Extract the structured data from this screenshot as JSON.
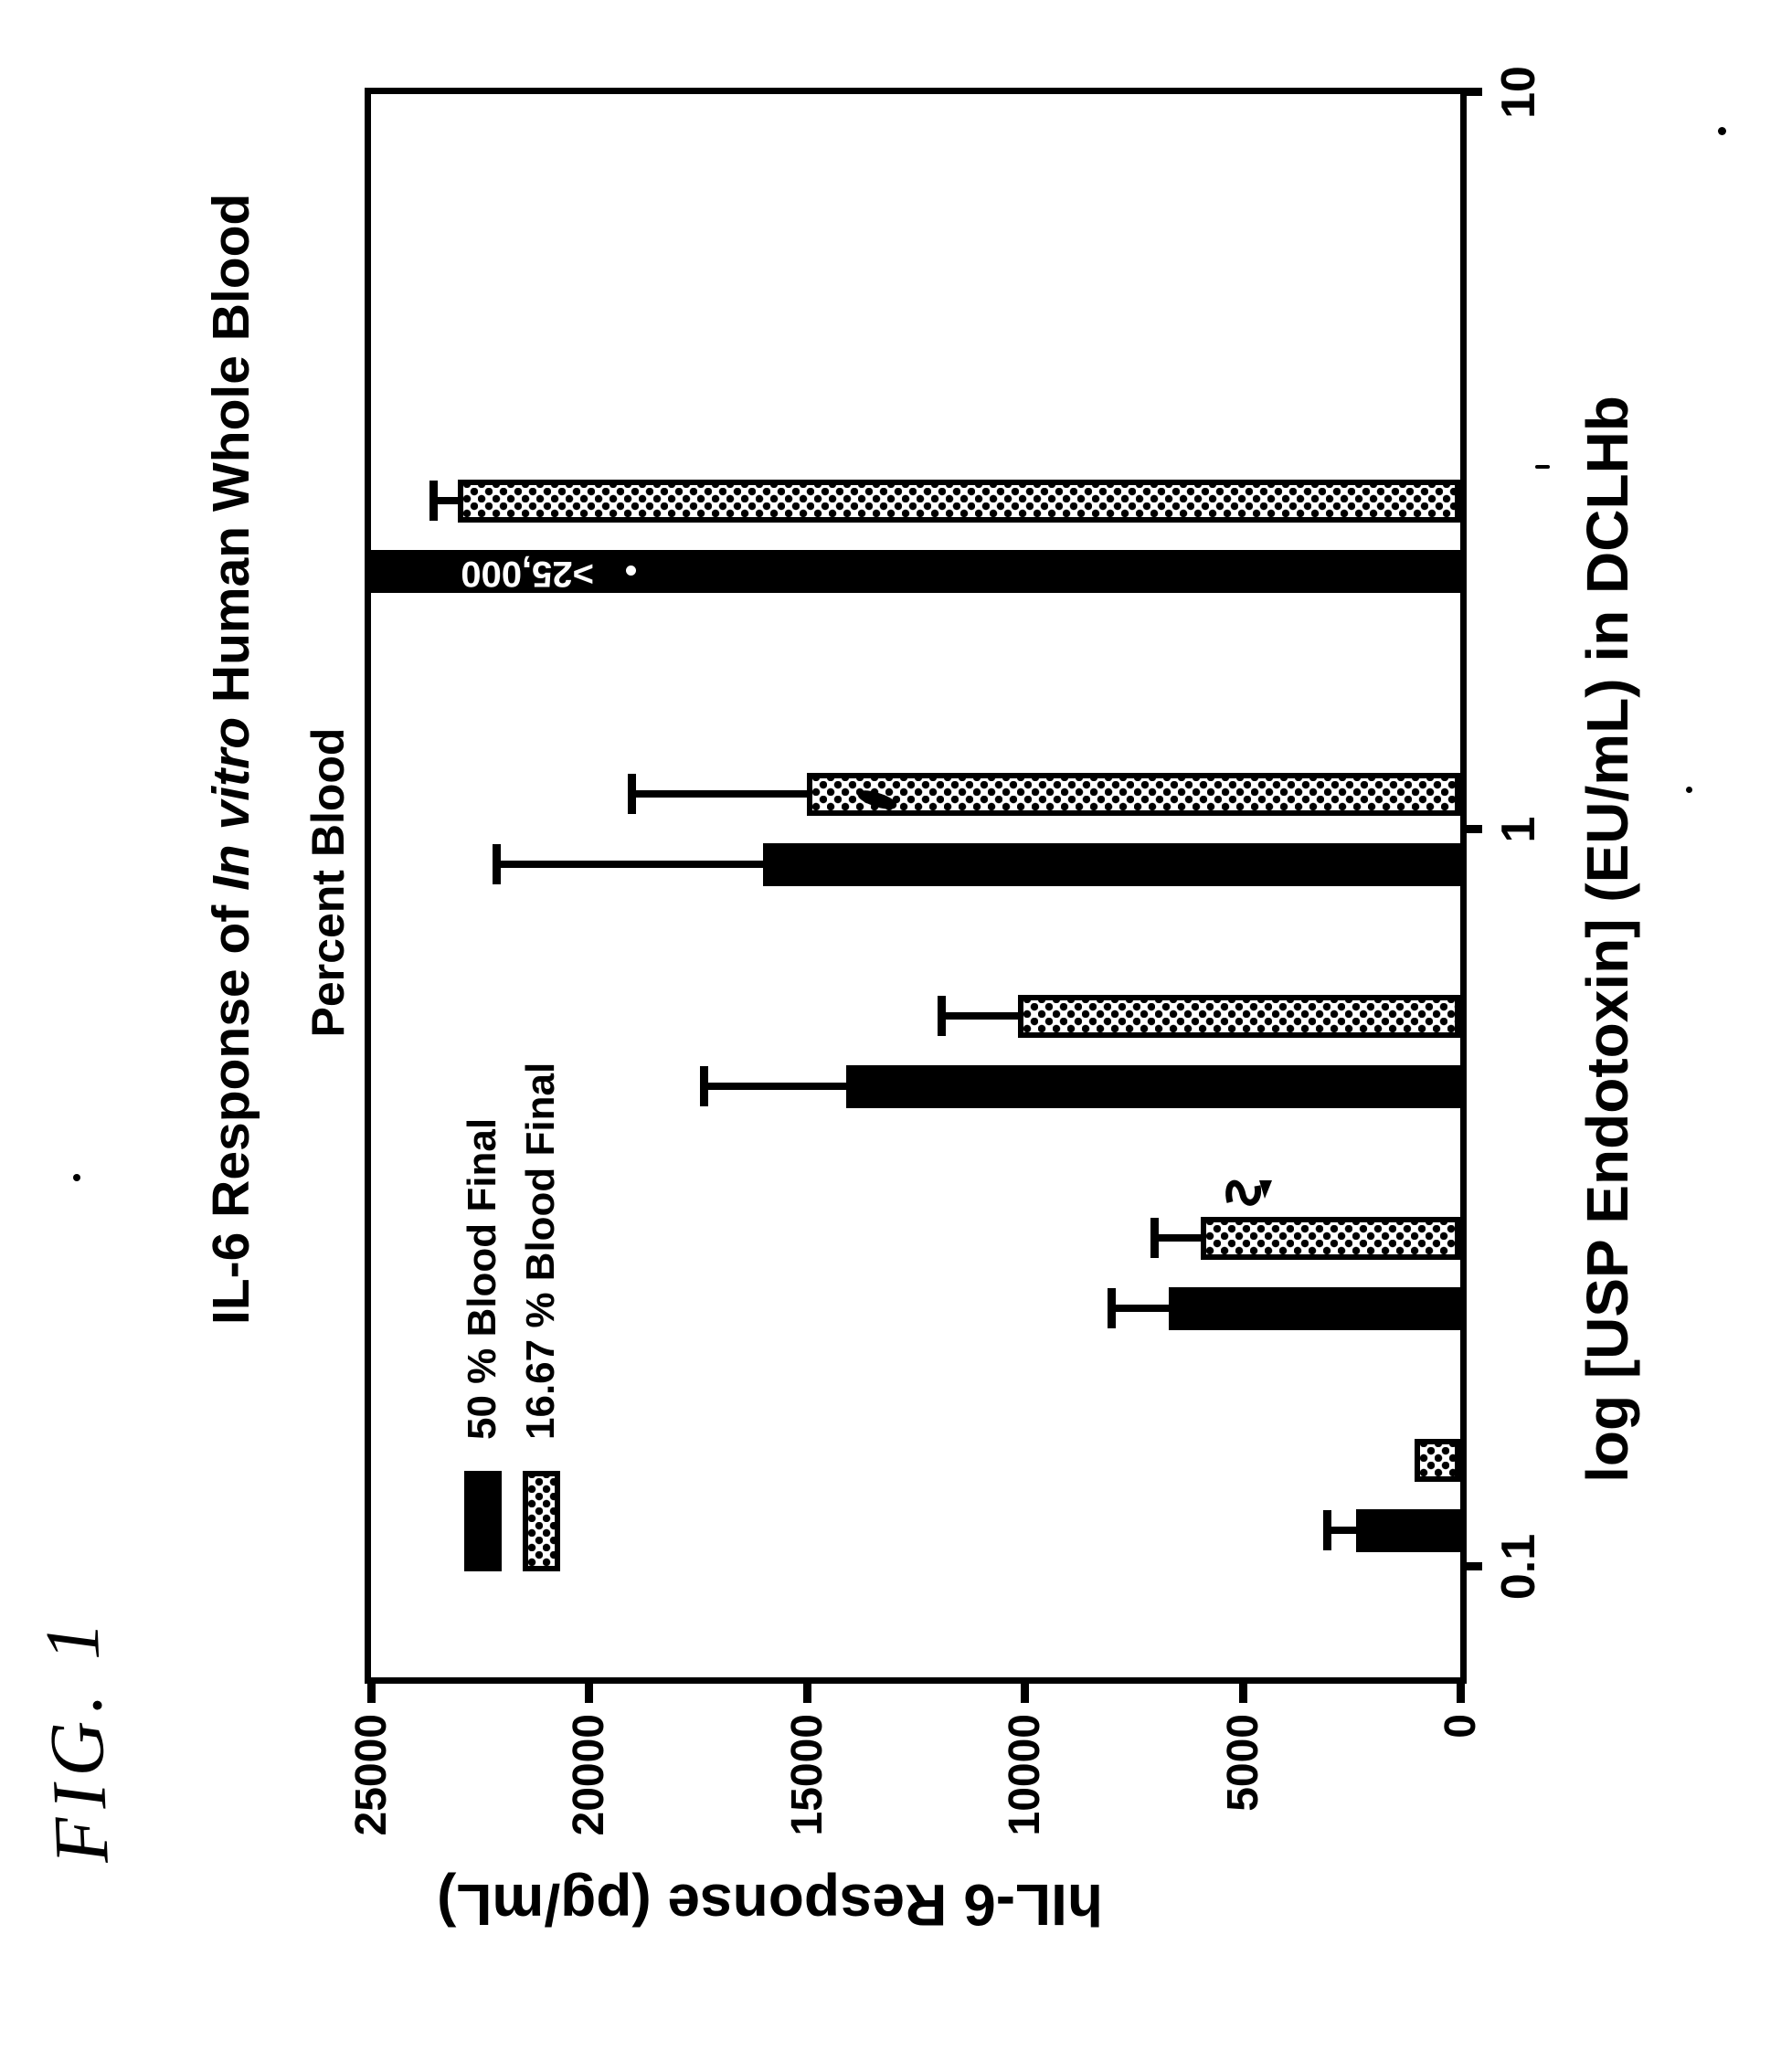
{
  "figure_label": "FIG. 1",
  "title": {
    "prefix": "IL-6 Response of ",
    "italic": "In vitro",
    "suffix": " Human Whole Blood"
  },
  "subtitle": "Percent Blood",
  "legend": {
    "items": [
      {
        "label": "50 % Blood Final",
        "swatch": "solid-black"
      },
      {
        "label": "16.67 % Blood Final",
        "swatch": "dot-pattern"
      }
    ]
  },
  "x_axis": {
    "label": "log [USP Endotoxin]  (EU/mL) in DCLHb",
    "ticks": [
      {
        "value": 0.1,
        "label": "0.1"
      },
      {
        "value": 1,
        "label": "1"
      },
      {
        "value": 10,
        "label": "10"
      }
    ]
  },
  "y_axis": {
    "label": "hIL-6 Response  (pg/mL)",
    "ticks": [
      {
        "value": 0,
        "label": "0"
      },
      {
        "value": 5000,
        "label": "5000"
      },
      {
        "value": 10000,
        "label": "10000"
      },
      {
        "value": 15000,
        "label": "15000"
      },
      {
        "value": 20000,
        "label": "20000"
      },
      {
        "value": 25000,
        "label": "25000"
      }
    ]
  },
  "overflow_label": ">25,000",
  "chart_data": {
    "type": "bar",
    "title": "IL-6 Response of In vitro Human Whole Blood",
    "subtitle": "Percent Blood",
    "xlabel": "log [USP Endotoxin]  (EU/mL) in DCLHb",
    "ylabel": "hIL-6 Response  (pg/mL)",
    "x_scale": "log",
    "x_ticks": [
      0.1,
      1,
      10
    ],
    "y_ticks": [
      0,
      5000,
      10000,
      15000,
      20000,
      25000
    ],
    "ylim": [
      0,
      25000
    ],
    "grid": false,
    "legend_position": "upper-left-inside",
    "page_rotation_deg": -90,
    "categories": [
      0.125,
      0.25,
      0.5,
      1.0,
      2.5
    ],
    "categories_unit": "EU/mL",
    "series": [
      {
        "name": "50 % Blood Final",
        "pattern": "solid-black",
        "values": [
          2400,
          6700,
          14100,
          16000,
          25000
        ],
        "upper_errors": [
          3050,
          8000,
          17350,
          22100,
          null
        ],
        "off_scale": [
          false,
          false,
          false,
          false,
          true
        ],
        "off_scale_label": ">25,000"
      },
      {
        "name": "16.67 % Blood Final",
        "pattern": "dot-hatch",
        "values": [
          1050,
          5950,
          10150,
          15000,
          23000
        ],
        "upper_errors": [
          null,
          7000,
          11900,
          19000,
          23550
        ],
        "off_scale": [
          false,
          false,
          false,
          false,
          false
        ]
      }
    ]
  }
}
